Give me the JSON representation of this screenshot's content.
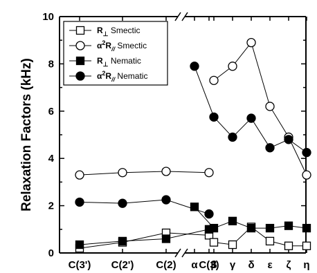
{
  "chart_data": {
    "type": "scatter",
    "title": "",
    "xlabel": "",
    "ylabel": "Relaxation Factors (kHz)",
    "ylim": [
      0,
      10
    ],
    "yticks": [
      "0",
      "2",
      "4",
      "6",
      "8",
      "10"
    ],
    "axis_break": true,
    "legend_position": "top-left",
    "groups": [
      {
        "categories": [
          "C(3')",
          "C(2')",
          "C(2)",
          "C(3)"
        ],
        "series": [
          {
            "name": "R⊥ Smectic",
            "marker": "open-square",
            "values": [
              0.2,
              0.45,
              0.85,
              0.75
            ]
          },
          {
            "name": "α²R∥ Smectic",
            "marker": "open-circle",
            "values": [
              3.3,
              3.4,
              3.45,
              3.4
            ]
          },
          {
            "name": "R⊥ Nematic",
            "marker": "filled-square",
            "values": [
              0.35,
              0.5,
              0.6,
              1.0
            ]
          },
          {
            "name": "α²R∥ Nematic",
            "marker": "filled-circle",
            "values": [
              2.15,
              2.1,
              2.25,
              1.65
            ]
          }
        ]
      },
      {
        "categories": [
          "α",
          "β",
          "γ",
          "δ",
          "ε",
          "ζ",
          "η"
        ],
        "series": [
          {
            "name": "R⊥ Smectic",
            "marker": "open-square",
            "values": [
              null,
              0.45,
              0.35,
              1.1,
              0.5,
              0.3,
              0.3
            ]
          },
          {
            "name": "α²R∥ Smectic",
            "marker": "open-circle",
            "values": [
              null,
              7.3,
              7.9,
              8.9,
              6.2,
              4.9,
              3.3
            ]
          },
          {
            "name": "R⊥ Nematic",
            "marker": "filled-square",
            "values": [
              1.95,
              1.05,
              1.35,
              1.05,
              1.05,
              1.15,
              1.05
            ]
          },
          {
            "name": "α²R∥ Nematic",
            "marker": "filled-circle",
            "values": [
              7.9,
              5.75,
              4.9,
              5.7,
              4.45,
              4.8,
              4.25
            ]
          }
        ]
      }
    ],
    "legend": [
      {
        "marker": "open-square",
        "main": "R",
        "sub": "⊥",
        "sup": "",
        "rest": " Smectic"
      },
      {
        "marker": "open-circle",
        "main": "α",
        "sub": "",
        "sup": "2",
        "main2": "R",
        "sub2": "//",
        "rest": " Smectic"
      },
      {
        "marker": "filled-square",
        "main": "R",
        "sub": "⊥",
        "sup": "",
        "rest": " Nematic"
      },
      {
        "marker": "filled-circle",
        "main": "α",
        "sub": "",
        "sup": "2",
        "main2": "R",
        "sub2": "//",
        "rest": " Nematic"
      }
    ]
  }
}
